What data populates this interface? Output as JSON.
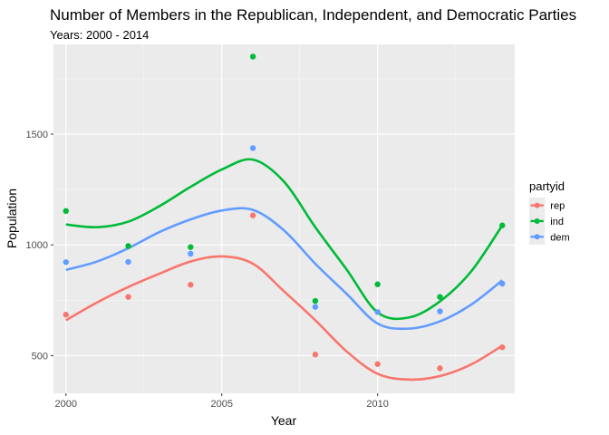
{
  "chart_data": {
    "type": "scatter",
    "title": "Number of Members in the Republican, Independent, and Democratic Parties",
    "subtitle": "Years: 2000 - 2014",
    "xlabel": "Year",
    "ylabel": "Population",
    "xlim": [
      1999.6,
      2014.4
    ],
    "ylim": [
      330,
      1905
    ],
    "x_ticks": [
      2000,
      2005,
      2010
    ],
    "y_ticks": [
      500,
      1000,
      1500
    ],
    "grid": true,
    "smooth": true,
    "legend": {
      "title": "partyid",
      "placement": "right"
    },
    "series": [
      {
        "name": "rep",
        "color": "#F8766D",
        "points": [
          {
            "x": 2000,
            "y": 685
          },
          {
            "x": 2002,
            "y": 765
          },
          {
            "x": 2004,
            "y": 820
          },
          {
            "x": 2006,
            "y": 1133
          },
          {
            "x": 2008,
            "y": 505
          },
          {
            "x": 2010,
            "y": 462
          },
          {
            "x": 2012,
            "y": 443
          },
          {
            "x": 2014,
            "y": 538
          }
        ],
        "curve": [
          {
            "x": 2000,
            "y": 660
          },
          {
            "x": 2001,
            "y": 740
          },
          {
            "x": 2002,
            "y": 810
          },
          {
            "x": 2003,
            "y": 870
          },
          {
            "x": 2004,
            "y": 925
          },
          {
            "x": 2005,
            "y": 948
          },
          {
            "x": 2006,
            "y": 915
          },
          {
            "x": 2007,
            "y": 790
          },
          {
            "x": 2008,
            "y": 660
          },
          {
            "x": 2009,
            "y": 520
          },
          {
            "x": 2010,
            "y": 418
          },
          {
            "x": 2011,
            "y": 392
          },
          {
            "x": 2012,
            "y": 408
          },
          {
            "x": 2013,
            "y": 460
          },
          {
            "x": 2014,
            "y": 545
          }
        ]
      },
      {
        "name": "ind",
        "color": "#00BA38",
        "points": [
          {
            "x": 2000,
            "y": 1153
          },
          {
            "x": 2002,
            "y": 995
          },
          {
            "x": 2004,
            "y": 990
          },
          {
            "x": 2006,
            "y": 1850
          },
          {
            "x": 2008,
            "y": 747
          },
          {
            "x": 2010,
            "y": 822
          },
          {
            "x": 2012,
            "y": 765
          },
          {
            "x": 2014,
            "y": 1088
          }
        ],
        "curve": [
          {
            "x": 2000,
            "y": 1092
          },
          {
            "x": 2001,
            "y": 1080
          },
          {
            "x": 2002,
            "y": 1105
          },
          {
            "x": 2003,
            "y": 1175
          },
          {
            "x": 2004,
            "y": 1262
          },
          {
            "x": 2005,
            "y": 1340
          },
          {
            "x": 2006,
            "y": 1385
          },
          {
            "x": 2007,
            "y": 1285
          },
          {
            "x": 2008,
            "y": 1080
          },
          {
            "x": 2009,
            "y": 890
          },
          {
            "x": 2010,
            "y": 695
          },
          {
            "x": 2011,
            "y": 672
          },
          {
            "x": 2012,
            "y": 745
          },
          {
            "x": 2013,
            "y": 880
          },
          {
            "x": 2014,
            "y": 1088
          }
        ]
      },
      {
        "name": "dem",
        "color": "#619CFF",
        "points": [
          {
            "x": 2000,
            "y": 922
          },
          {
            "x": 2002,
            "y": 923
          },
          {
            "x": 2004,
            "y": 960
          },
          {
            "x": 2006,
            "y": 1437
          },
          {
            "x": 2008,
            "y": 720
          },
          {
            "x": 2010,
            "y": 697
          },
          {
            "x": 2012,
            "y": 700
          },
          {
            "x": 2014,
            "y": 825
          }
        ],
        "curve": [
          {
            "x": 2000,
            "y": 887
          },
          {
            "x": 2001,
            "y": 925
          },
          {
            "x": 2002,
            "y": 985
          },
          {
            "x": 2003,
            "y": 1058
          },
          {
            "x": 2004,
            "y": 1115
          },
          {
            "x": 2005,
            "y": 1155
          },
          {
            "x": 2006,
            "y": 1158
          },
          {
            "x": 2007,
            "y": 1065
          },
          {
            "x": 2008,
            "y": 915
          },
          {
            "x": 2009,
            "y": 780
          },
          {
            "x": 2010,
            "y": 645
          },
          {
            "x": 2011,
            "y": 622
          },
          {
            "x": 2012,
            "y": 655
          },
          {
            "x": 2013,
            "y": 730
          },
          {
            "x": 2014,
            "y": 840
          }
        ]
      }
    ]
  }
}
